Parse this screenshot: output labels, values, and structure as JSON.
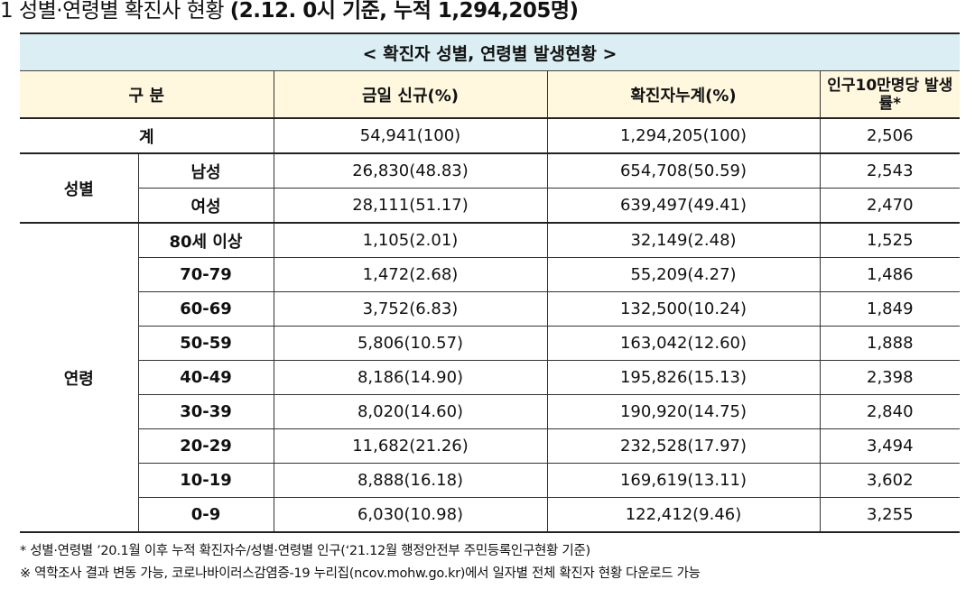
{
  "heading": {
    "prefix": "1 성별·연령별 확진사 현황 ",
    "bold": "(2.12. 0시 기준, 누적 1,294,205명)"
  },
  "table": {
    "caption": "< 확진자 성별, 연령별 발생현황 >",
    "headers": {
      "category": "구 분",
      "today_new": "금일 신규(%)",
      "cumulative": "확진자누계(%)",
      "per_100k": "인구10만명당 발생률*"
    },
    "total": {
      "label": "계",
      "today_new": "54,941(100)",
      "cumulative": "1,294,205(100)",
      "per_100k": "2,506"
    },
    "sex_group": "성별",
    "sex_rows": [
      {
        "label": "남성",
        "today_new": "26,830(48.83)",
        "cumulative": "654,708(50.59)",
        "per_100k": "2,543"
      },
      {
        "label": "여성",
        "today_new": "28,111(51.17)",
        "cumulative": "639,497(49.41)",
        "per_100k": "2,470"
      }
    ],
    "age_group": "연령",
    "age_rows": [
      {
        "label": "80세 이상",
        "today_new": "1,105(2.01)",
        "cumulative": "32,149(2.48)",
        "per_100k": "1,525"
      },
      {
        "label": "70-79",
        "today_new": "1,472(2.68)",
        "cumulative": "55,209(4.27)",
        "per_100k": "1,486"
      },
      {
        "label": "60-69",
        "today_new": "3,752(6.83)",
        "cumulative": "132,500(10.24)",
        "per_100k": "1,849"
      },
      {
        "label": "50-59",
        "today_new": "5,806(10.57)",
        "cumulative": "163,042(12.60)",
        "per_100k": "1,888"
      },
      {
        "label": "40-49",
        "today_new": "8,186(14.90)",
        "cumulative": "195,826(15.13)",
        "per_100k": "2,398"
      },
      {
        "label": "30-39",
        "today_new": "8,020(14.60)",
        "cumulative": "190,920(14.75)",
        "per_100k": "2,840"
      },
      {
        "label": "20-29",
        "today_new": "11,682(21.26)",
        "cumulative": "232,528(17.97)",
        "per_100k": "3,494"
      },
      {
        "label": "10-19",
        "today_new": "8,888(16.18)",
        "cumulative": "169,619(13.11)",
        "per_100k": "3,602"
      },
      {
        "label": "0-9",
        "today_new": "6,030(10.98)",
        "cumulative": "122,412(9.46)",
        "per_100k": "3,255"
      }
    ]
  },
  "notes": [
    "* 성별·연령별 ’20.1월 이후 누적 확진자수/성별·연령별 인구(‘21.12월 행정안전부 주민등록인구현황 기준)",
    "※ 역학조사 결과 변동 가능, 코로나바이러스감염증-19 누리집(ncov.mohw.go.kr)에서 일자별 전체 확진자 현황 다운로드 가능"
  ]
}
